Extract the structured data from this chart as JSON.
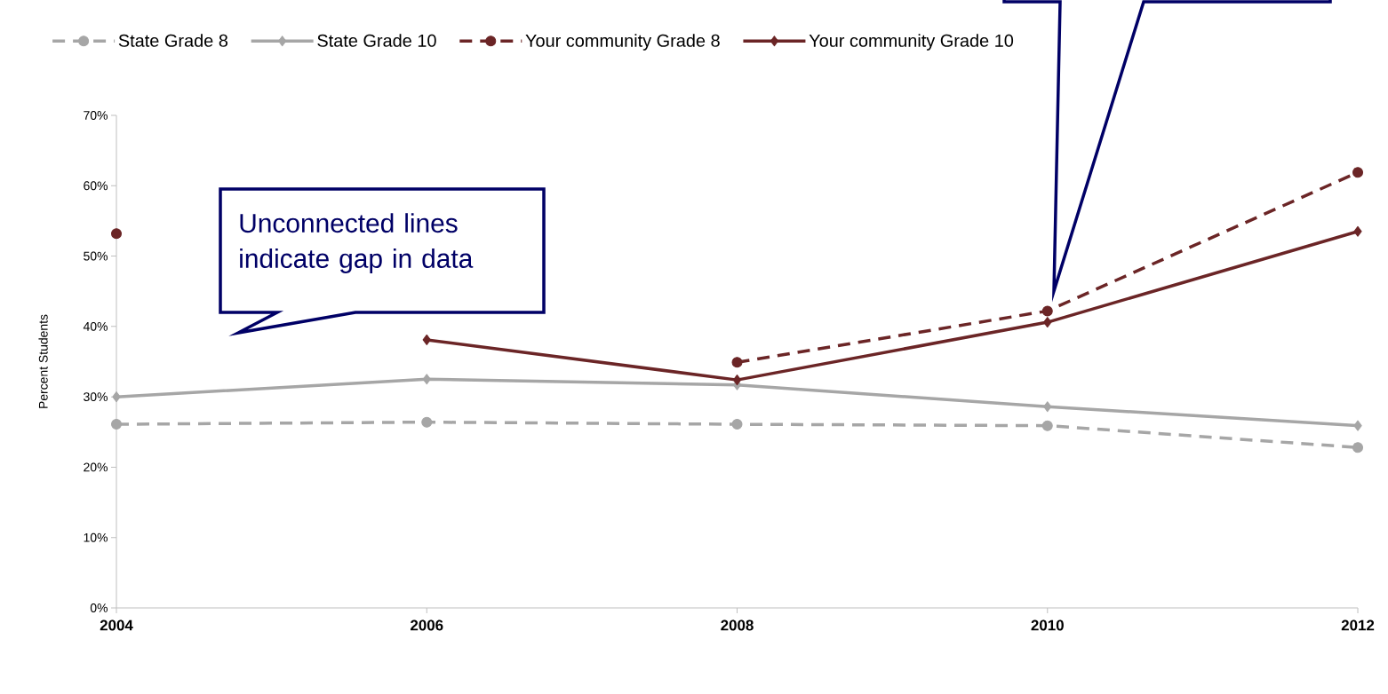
{
  "chart_data": {
    "type": "line",
    "ylabel": "Percent Students",
    "categories": [
      "2004",
      "2006",
      "2008",
      "2010",
      "2012"
    ],
    "series": [
      {
        "name": "State Grade 8",
        "color": "#a6a6a6",
        "marker": "circle",
        "line_style": "dashed",
        "values": [
          26.1,
          26.4,
          26.1,
          25.9,
          22.8
        ]
      },
      {
        "name": "State Grade 10",
        "color": "#a6a6a6",
        "marker": "diamond",
        "line_style": "solid",
        "values": [
          30.0,
          32.5,
          31.7,
          28.6,
          25.9
        ]
      },
      {
        "name": "Your community Grade 8",
        "color": "#6b2526",
        "marker": "circle",
        "line_style": "dashed",
        "values": [
          53.2,
          null,
          34.9,
          42.2,
          61.9
        ]
      },
      {
        "name": "Your community Grade 10",
        "color": "#6b2526",
        "marker": "diamond",
        "line_style": "solid",
        "values": [
          null,
          38.1,
          32.4,
          40.6,
          53.5
        ]
      }
    ],
    "ylim": [
      0,
      70
    ],
    "yticks": [
      {
        "value": 0,
        "label": "0%"
      },
      {
        "value": 10,
        "label": "10%"
      },
      {
        "value": 20,
        "label": "20%"
      },
      {
        "value": 30,
        "label": "30%"
      },
      {
        "value": 40,
        "label": "40%"
      },
      {
        "value": 50,
        "label": "50%"
      },
      {
        "value": 60,
        "label": "60%"
      },
      {
        "value": 70,
        "label": "70%"
      }
    ],
    "legend": "top",
    "annotations": [
      "Unconnected lines indicate gap in data"
    ]
  }
}
